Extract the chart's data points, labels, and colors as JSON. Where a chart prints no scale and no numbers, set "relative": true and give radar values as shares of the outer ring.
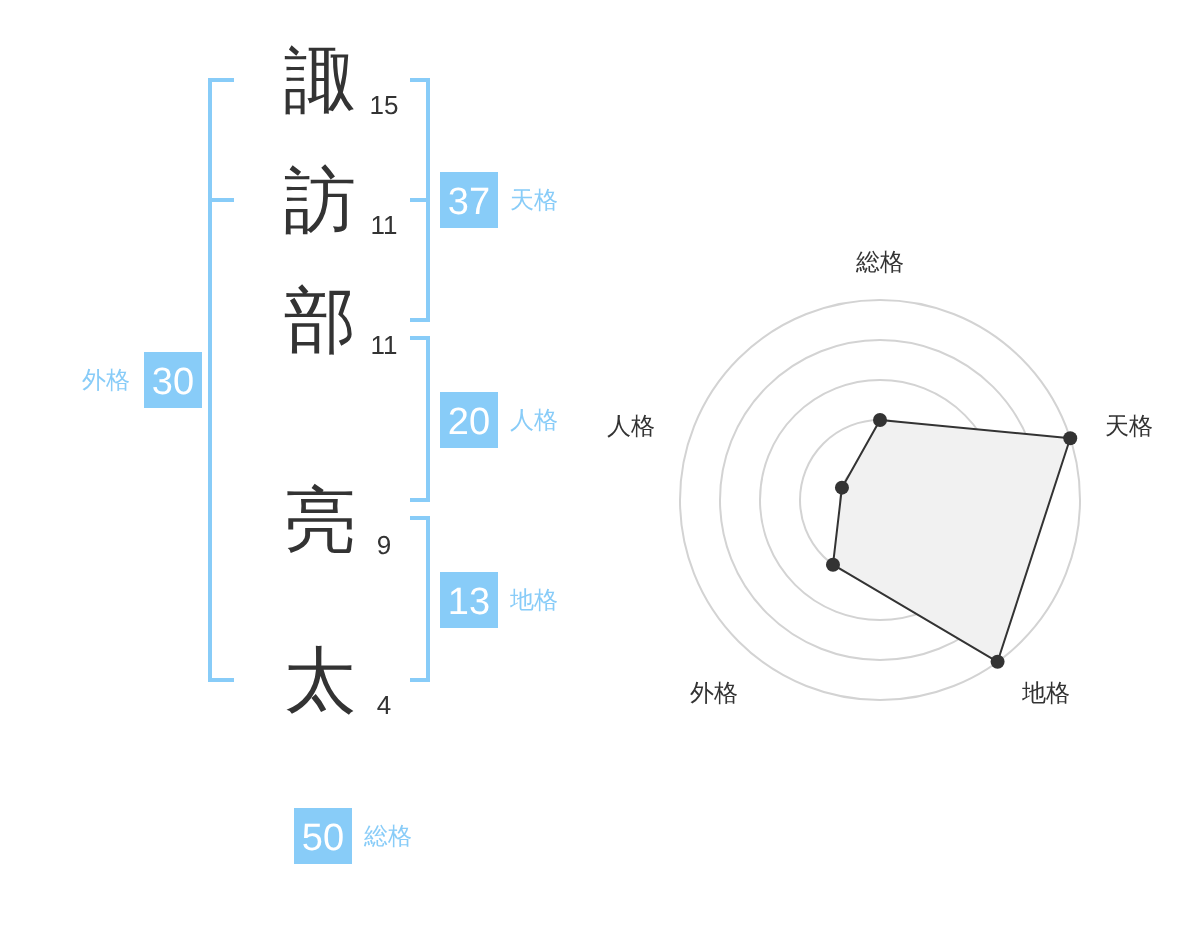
{
  "chart_data": [
    {
      "type": "other",
      "categories": [
        "諏",
        "訪",
        "部",
        "亮",
        "太"
      ],
      "values": [
        15,
        11,
        11,
        9,
        4
      ],
      "data_labels": true
    },
    {
      "type": "other",
      "categories": [
        "天格",
        "人格",
        "地格",
        "外格",
        "総格"
      ],
      "values": [
        37,
        20,
        13,
        30,
        50
      ],
      "color": "#88ccf8",
      "data_labels": true
    },
    {
      "type": "radar",
      "categories": [
        "総格",
        "天格",
        "地格",
        "外格",
        "人格"
      ],
      "relative": true,
      "grid": true,
      "marker": "circle",
      "series": [
        {
          "color": "#333333",
          "values": [
            0.4,
            1,
            1,
            0.4,
            0.2
          ]
        }
      ]
    }
  ]
}
